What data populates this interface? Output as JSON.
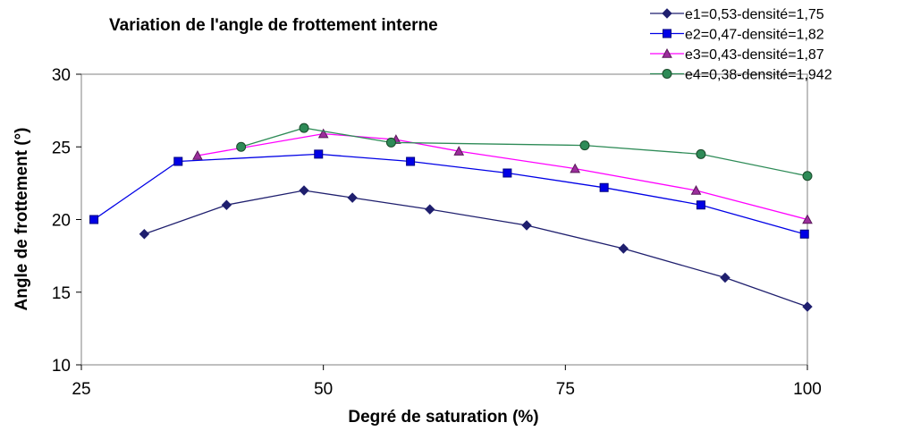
{
  "chart_data": {
    "type": "line",
    "title": "Variation de l'angle de frottement interne",
    "xlabel": "Degré de saturation (%)",
    "ylabel": "Angle de frottement (°)",
    "xlim": [
      25,
      100
    ],
    "ylim": [
      10,
      30
    ],
    "x_ticks": [
      25,
      50,
      75,
      100
    ],
    "y_ticks": [
      10,
      15,
      20,
      25,
      30
    ],
    "grid": false,
    "legend_position": "top-right",
    "series": [
      {
        "name": "e1=0,53-densité=1,75",
        "color": "#1F1F6E",
        "marker": "diamond",
        "points": [
          [
            31.5,
            19
          ],
          [
            40,
            21
          ],
          [
            48,
            22
          ],
          [
            53,
            21.5
          ],
          [
            61,
            20.7
          ],
          [
            71,
            19.6
          ],
          [
            81,
            18
          ],
          [
            91.5,
            16
          ],
          [
            100,
            14
          ]
        ]
      },
      {
        "name": "e2=0,47-densité=1,82",
        "color": "#0000E6",
        "marker": "square",
        "points": [
          [
            26.3,
            20
          ],
          [
            35,
            24
          ],
          [
            49.5,
            24.5
          ],
          [
            59,
            24
          ],
          [
            69,
            23.2
          ],
          [
            79,
            22.2
          ],
          [
            89,
            21
          ],
          [
            99.7,
            19
          ]
        ]
      },
      {
        "name": "e3=0,43-densité=1,87",
        "color": "#FF00FF",
        "marker": "triangle",
        "points": [
          [
            37,
            24.4
          ],
          [
            50,
            25.9
          ],
          [
            57.5,
            25.5
          ],
          [
            64,
            24.7
          ],
          [
            76,
            23.5
          ],
          [
            88.5,
            22
          ],
          [
            100,
            20
          ]
        ]
      },
      {
        "name": "e4=0,38-densité=1,942",
        "color": "#2E8B57",
        "marker": "circle",
        "points": [
          [
            41.5,
            25
          ],
          [
            48,
            26.3
          ],
          [
            57,
            25.3
          ],
          [
            77,
            25.1
          ],
          [
            89,
            24.5
          ],
          [
            100,
            23
          ]
        ]
      }
    ]
  }
}
